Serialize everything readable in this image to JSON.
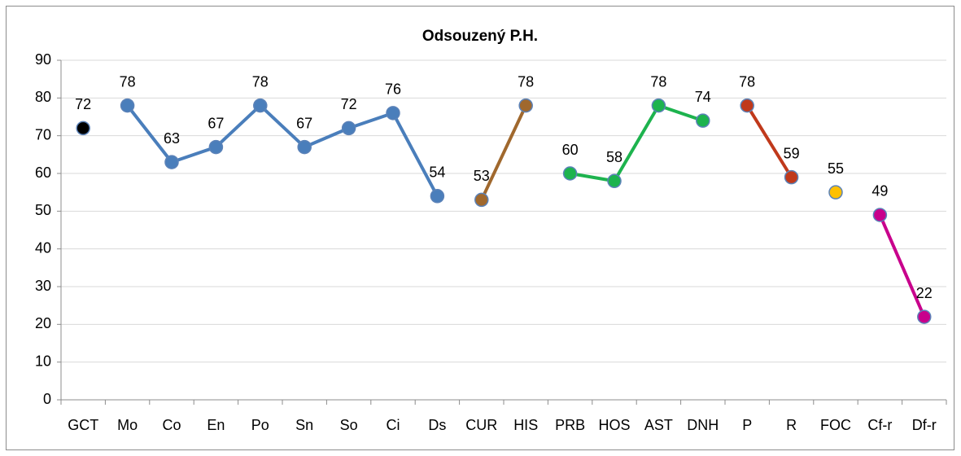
{
  "chart_data": {
    "type": "line",
    "title": "Odsouzený P.H.",
    "categories": [
      "GCT",
      "Mo",
      "Co",
      "En",
      "Po",
      "Sn",
      "So",
      "Ci",
      "Ds",
      "CUR",
      "HIS",
      "PRB",
      "HOS",
      "AST",
      "DNH",
      "P",
      "R",
      "FOC",
      "Cf-r",
      "Df-r"
    ],
    "series": [
      {
        "color": "#000000",
        "values": [
          72,
          null,
          null,
          null,
          null,
          null,
          null,
          null,
          null,
          null,
          null,
          null,
          null,
          null,
          null,
          null,
          null,
          null,
          null,
          null
        ]
      },
      {
        "color": "#4a7ebb",
        "values": [
          null,
          78,
          63,
          67,
          78,
          67,
          72,
          76,
          54,
          null,
          null,
          null,
          null,
          null,
          null,
          null,
          null,
          null,
          null,
          null
        ]
      },
      {
        "color": "#a0682d",
        "values": [
          null,
          null,
          null,
          null,
          null,
          null,
          null,
          null,
          null,
          53,
          78,
          null,
          null,
          null,
          null,
          null,
          null,
          null,
          null,
          null
        ]
      },
      {
        "color": "#1db34e",
        "values": [
          null,
          null,
          null,
          null,
          null,
          null,
          null,
          null,
          null,
          null,
          null,
          60,
          58,
          78,
          74,
          null,
          null,
          null,
          null,
          null
        ]
      },
      {
        "color": "#c0391b",
        "values": [
          null,
          null,
          null,
          null,
          null,
          null,
          null,
          null,
          null,
          null,
          null,
          null,
          null,
          null,
          null,
          78,
          59,
          null,
          null,
          null
        ]
      },
      {
        "color": "#ffc000",
        "values": [
          null,
          null,
          null,
          null,
          null,
          null,
          null,
          null,
          null,
          null,
          null,
          null,
          null,
          null,
          null,
          null,
          null,
          55,
          null,
          null
        ]
      },
      {
        "color": "#c8008c",
        "values": [
          null,
          null,
          null,
          null,
          null,
          null,
          null,
          null,
          null,
          null,
          null,
          null,
          null,
          null,
          null,
          null,
          null,
          null,
          49,
          22
        ]
      }
    ],
    "ylim": [
      0,
      90
    ],
    "yticks": [
      0,
      10,
      20,
      30,
      40,
      50,
      60,
      70,
      80,
      90
    ],
    "grid": true
  }
}
